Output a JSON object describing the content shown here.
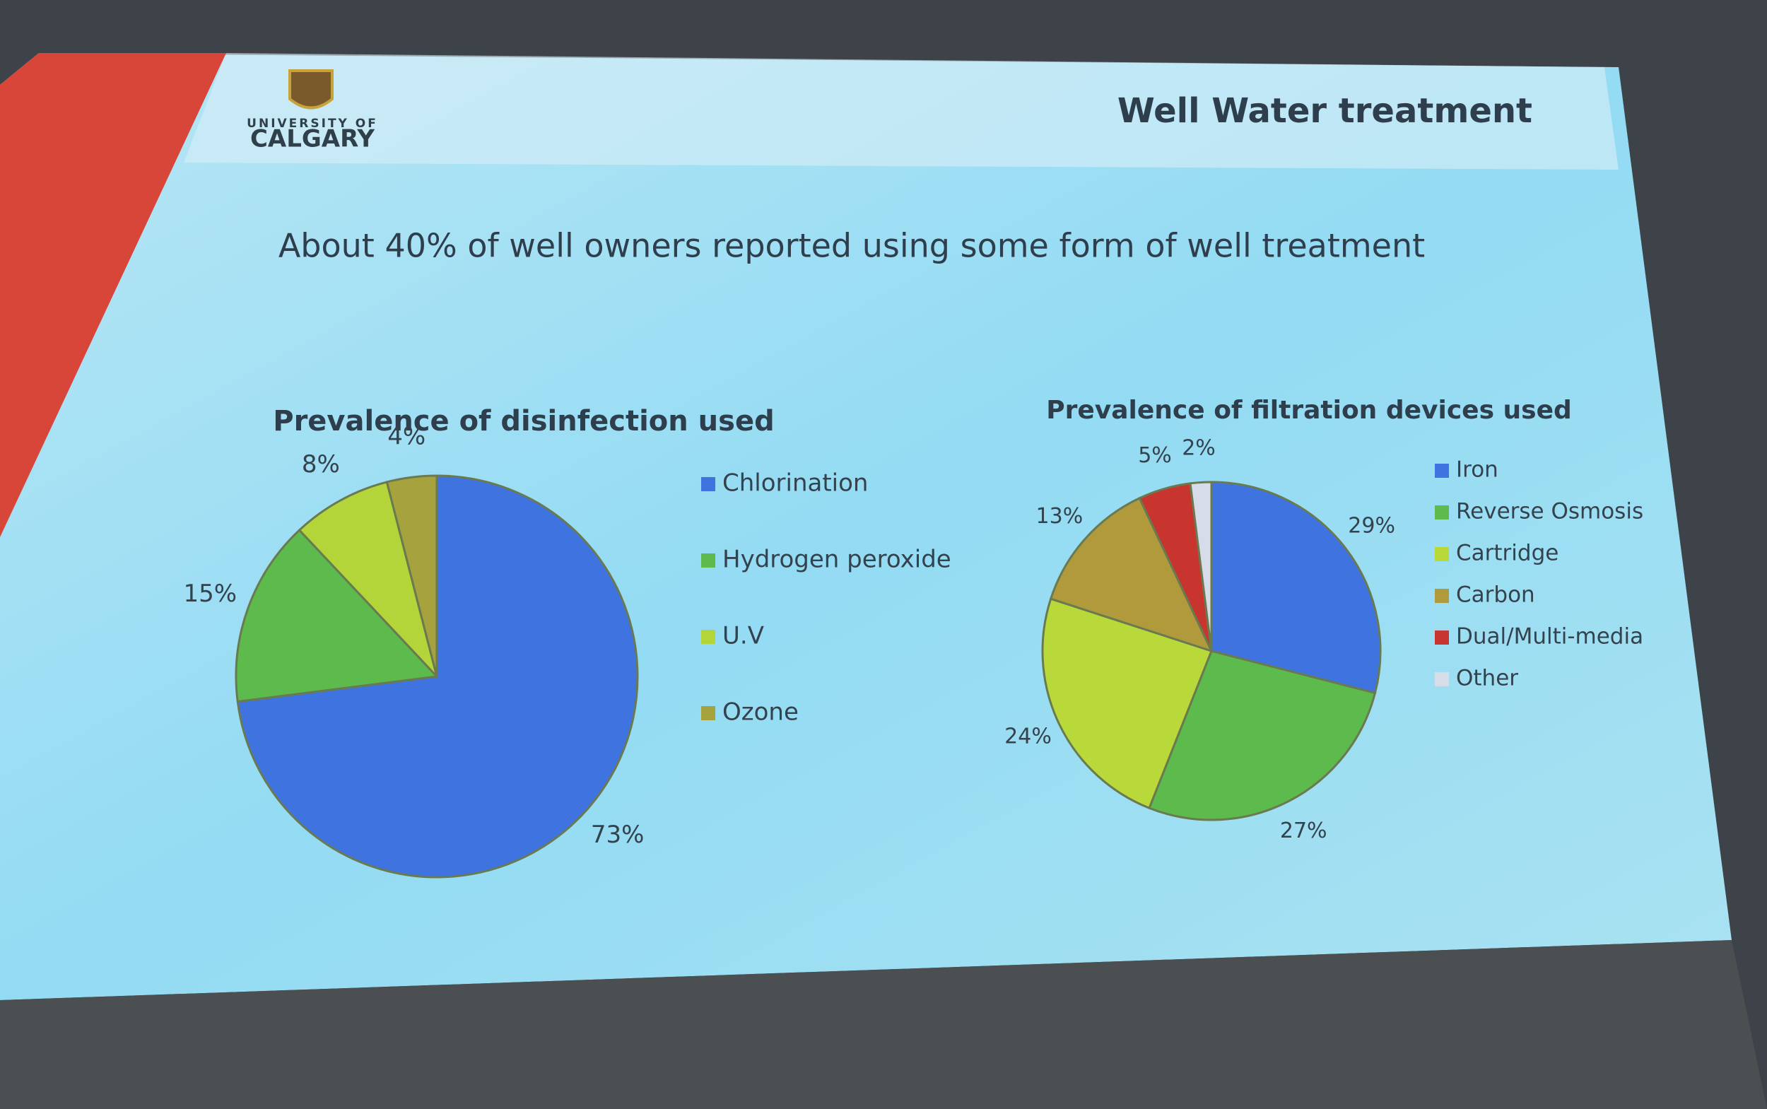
{
  "slide": {
    "logo_line1": "UNIVERSITY OF",
    "logo_line2": "CALGARY",
    "title": "Well Water treatment",
    "subtitle": "About 40% of well owners reported using some form of well treatment"
  },
  "chart_data": [
    {
      "type": "pie",
      "title": "Prevalence of disinfection used",
      "categories": [
        "Chlorination",
        "Hydrogen peroxide",
        "U.V",
        "Ozone"
      ],
      "values": [
        73,
        15,
        8,
        4
      ],
      "value_labels": [
        "73%",
        "15%",
        "8%",
        "4%"
      ],
      "colors": [
        "#3f74e0",
        "#5cbb4c",
        "#b4d53a",
        "#a6a33e"
      ]
    },
    {
      "type": "pie",
      "title": "Prevalence of filtration devices used",
      "categories": [
        "Iron",
        "Reverse Osmosis",
        "Cartridge",
        "Carbon",
        "Dual/Multi-media",
        "Other"
      ],
      "values": [
        29,
        27,
        24,
        13,
        5,
        2
      ],
      "value_labels": [
        "29%",
        "27%",
        "24%",
        "13%",
        "5%",
        "2%"
      ],
      "colors": [
        "#3f74e0",
        "#5cbb4c",
        "#b9d83a",
        "#b09a3c",
        "#c8342e",
        "#d6dde9"
      ]
    }
  ]
}
